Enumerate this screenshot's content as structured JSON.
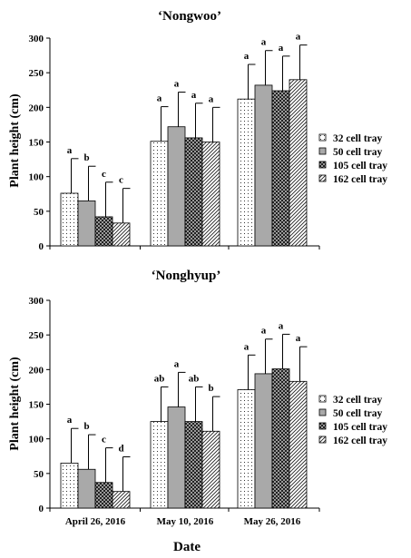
{
  "chart_data": [
    {
      "type": "bar",
      "title": "‘Nongwoo’",
      "ylabel": "Plant height  (cm)",
      "xlabel": "",
      "ylim": [
        0,
        300
      ],
      "yticks": [
        0,
        50,
        100,
        150,
        200,
        250,
        300
      ],
      "categories": [
        "",
        "",
        ""
      ],
      "series": [
        {
          "name": "32 cell tray",
          "values": [
            76,
            151,
            212
          ],
          "errors": [
            50,
            50,
            50
          ],
          "letters": [
            "a",
            "a",
            "a"
          ]
        },
        {
          "name": "50 cell tray",
          "values": [
            65,
            172,
            232
          ],
          "errors": [
            50,
            50,
            50
          ],
          "letters": [
            "b",
            "a",
            "a"
          ]
        },
        {
          "name": "105 cell tray",
          "values": [
            42,
            156,
            224
          ],
          "errors": [
            50,
            50,
            50
          ],
          "letters": [
            "c",
            "a",
            "a"
          ]
        },
        {
          "name": "162 cell tray",
          "values": [
            33,
            150,
            240
          ],
          "errors": [
            50,
            50,
            50
          ],
          "letters": [
            "c",
            "a",
            "a"
          ]
        }
      ],
      "legend_position": "right"
    },
    {
      "type": "bar",
      "title": "‘Nonghyup’",
      "ylabel": "Plant height  (cm)",
      "xlabel": "Date",
      "ylim": [
        0,
        300
      ],
      "yticks": [
        0,
        50,
        100,
        150,
        200,
        250,
        300
      ],
      "categories": [
        "April 26, 2016",
        "May 10, 2016",
        "May 26, 2016"
      ],
      "series": [
        {
          "name": "32 cell tray",
          "values": [
            65,
            125,
            171
          ],
          "errors": [
            50,
            50,
            50
          ],
          "letters": [
            "a",
            "ab",
            "a"
          ]
        },
        {
          "name": "50 cell tray",
          "values": [
            56,
            146,
            194
          ],
          "errors": [
            50,
            50,
            50
          ],
          "letters": [
            "b",
            "a",
            "a"
          ]
        },
        {
          "name": "105 cell tray",
          "values": [
            37,
            125,
            201
          ],
          "errors": [
            50,
            50,
            50
          ],
          "letters": [
            "c",
            "ab",
            "a"
          ]
        },
        {
          "name": "162 cell tray",
          "values": [
            24,
            111,
            183
          ],
          "errors": [
            50,
            50,
            50
          ],
          "letters": [
            "d",
            "b",
            "a"
          ]
        }
      ],
      "legend_position": "right"
    }
  ]
}
